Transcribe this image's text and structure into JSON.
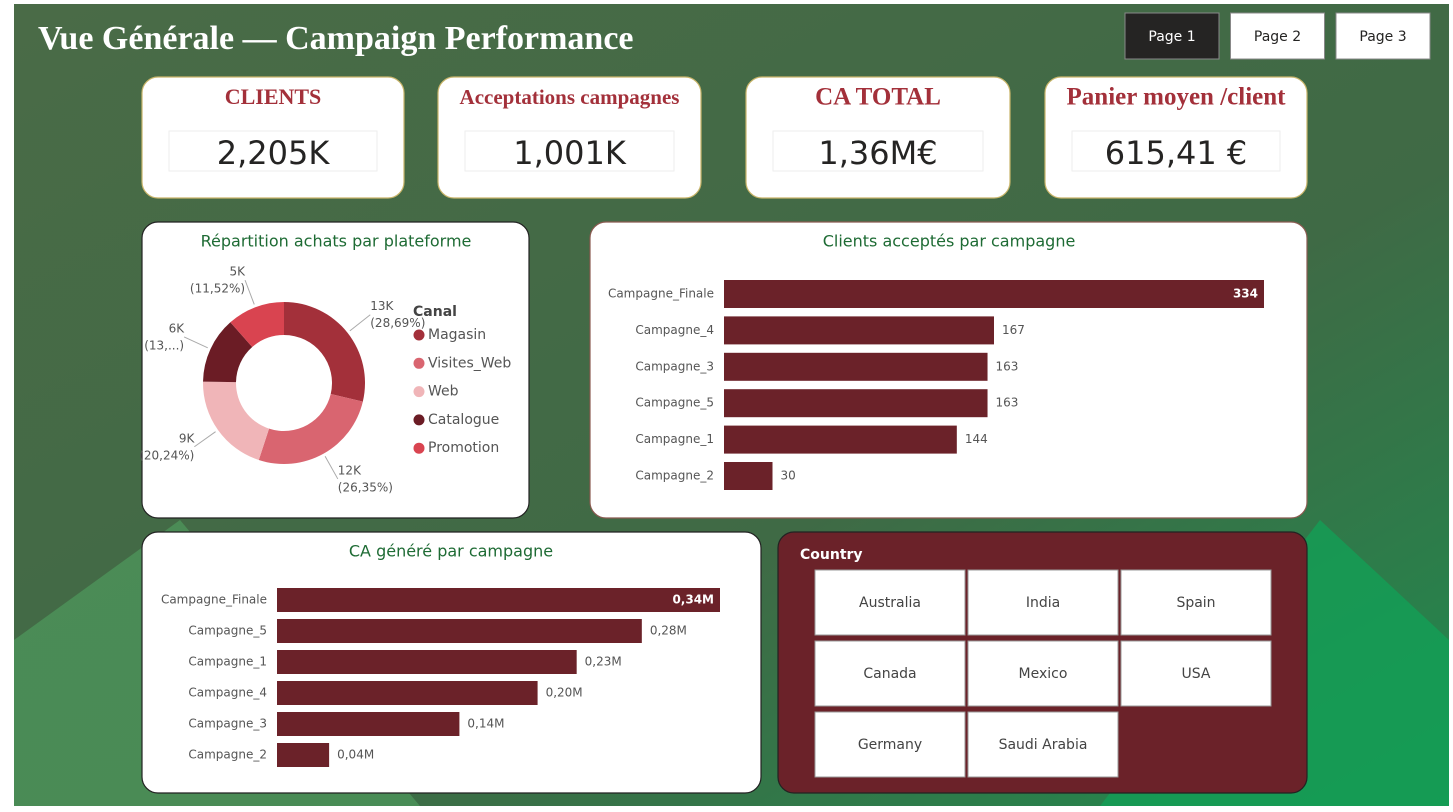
{
  "header": {
    "title": "Vue Générale — Campaign Performance"
  },
  "pages": [
    "Page 1",
    "Page 2",
    "Page 3"
  ],
  "kpis": [
    {
      "title": "CLIENTS",
      "value": "2,205K"
    },
    {
      "title": "Acceptations campagnes",
      "value": "1,001K"
    },
    {
      "title": "CA TOTAL",
      "value": "1,36M€"
    },
    {
      "title": "Panier moyen /client",
      "value": "615,41 €"
    }
  ],
  "chart_data": [
    {
      "type": "donut",
      "title": "Répartition achats par plateforme",
      "legend_title": "Canal",
      "categories": [
        "Magasin",
        "Visites_Web",
        "Web",
        "Catalogue",
        "Promotion"
      ],
      "values": [
        28.69,
        26.35,
        20.24,
        13.2,
        11.52
      ],
      "value_labels": [
        [
          "13K",
          "(28,69%)"
        ],
        [
          "12K",
          "(26,35%)"
        ],
        [
          "9K",
          "(20,24%)"
        ],
        [
          "6K",
          "(13,...)"
        ],
        [
          "5K",
          "(11,52%)"
        ]
      ],
      "colors": [
        "#a3303a",
        "#d96570",
        "#f0b5b8",
        "#6b1c25",
        "#d94450"
      ]
    },
    {
      "type": "bar",
      "title": "Clients acceptés par campagne",
      "categories": [
        "Campagne_Finale",
        "Campagne_4",
        "Campagne_3",
        "Campagne_5",
        "Campagne_1",
        "Campagne_2"
      ],
      "values": [
        334,
        167,
        163,
        163,
        144,
        30
      ],
      "color": "#6b2229"
    },
    {
      "type": "bar",
      "title": "CA généré par campagne",
      "categories": [
        "Campagne_Finale",
        "Campagne_5",
        "Campagne_1",
        "Campagne_4",
        "Campagne_3",
        "Campagne_2"
      ],
      "values": [
        0.34,
        0.28,
        0.23,
        0.2,
        0.14,
        0.04
      ],
      "value_labels": [
        "0,34M",
        "0,28M",
        "0,23M",
        "0,20M",
        "0,14M",
        "0,04M"
      ],
      "color": "#6b2229"
    }
  ],
  "slicer": {
    "title": "Country",
    "items": [
      "Australia",
      "India",
      "Spain",
      "Canada",
      "Mexico",
      "USA",
      "Germany",
      "Saudi Arabia"
    ]
  }
}
